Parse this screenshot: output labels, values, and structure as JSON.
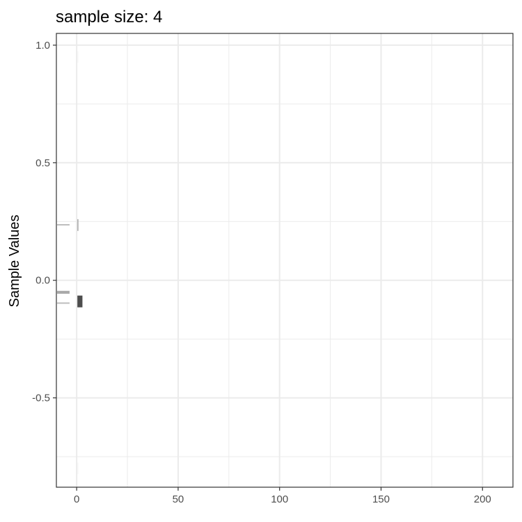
{
  "chart_data": {
    "type": "bar",
    "title": "sample size: 4",
    "xlabel": "",
    "ylabel": "Sample Values",
    "xlim": [
      -10,
      215
    ],
    "ylim": [
      -0.88,
      1.05
    ],
    "x_ticks": [
      {
        "value": 0,
        "label": "0"
      },
      {
        "value": 50,
        "label": "50"
      },
      {
        "value": 100,
        "label": "100"
      },
      {
        "value": 150,
        "label": "150"
      },
      {
        "value": 200,
        "label": "200"
      }
    ],
    "y_ticks": [
      {
        "value": 1.0,
        "label": "1.0"
      },
      {
        "value": 0.5,
        "label": "0.5"
      },
      {
        "value": 0.0,
        "label": "0.0"
      },
      {
        "value": -0.5,
        "label": "-0.5"
      }
    ],
    "x_minor": [
      25,
      75,
      125,
      175
    ],
    "y_minor": [
      0.75,
      0.25,
      -0.25,
      -0.75
    ],
    "grid": true,
    "theme": "bw",
    "orientation": "horizontal",
    "bin_width": 0.05,
    "bins": [
      {
        "y": -0.8,
        "count": 0,
        "color": "#f7f7f7"
      },
      {
        "y": -0.09,
        "count": 2.5,
        "color": "#4d4d4d"
      },
      {
        "y": 0.235,
        "count": 0.5,
        "color": "#a6a6a6"
      },
      {
        "y": 0.95,
        "count": 0,
        "color": "#f7f7f7"
      }
    ],
    "samples": [
      {
        "value": 0.236,
        "color": "#bdbdbd"
      },
      {
        "value": -0.048,
        "color": "#a6a6a6"
      },
      {
        "value": -0.054,
        "color": "#a6a6a6"
      },
      {
        "value": -0.097,
        "color": "#bdbdbd"
      }
    ]
  }
}
